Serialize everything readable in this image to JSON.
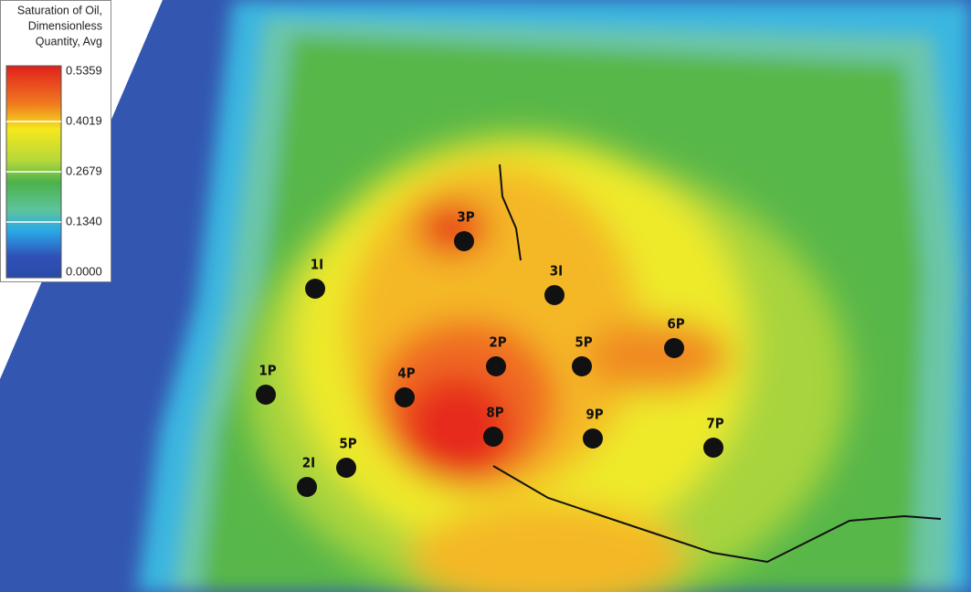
{
  "legend": {
    "title_lines": [
      "Saturation of Oil,",
      "Dimensionless",
      "Quantity, Avg"
    ],
    "ticks": [
      "0.5359",
      "0.4019",
      "0.2679",
      "0.1340",
      "0.0000"
    ]
  },
  "wells": [
    {
      "label": "3P"
    },
    {
      "label": "1I"
    },
    {
      "label": "3I"
    },
    {
      "label": "6P"
    },
    {
      "label": "2P"
    },
    {
      "label": "5P"
    },
    {
      "label": "1P"
    },
    {
      "label": "4P"
    },
    {
      "label": "8P"
    },
    {
      "label": "9P"
    },
    {
      "label": "7P"
    },
    {
      "label": "2I"
    },
    {
      "label": "5P"
    }
  ]
}
